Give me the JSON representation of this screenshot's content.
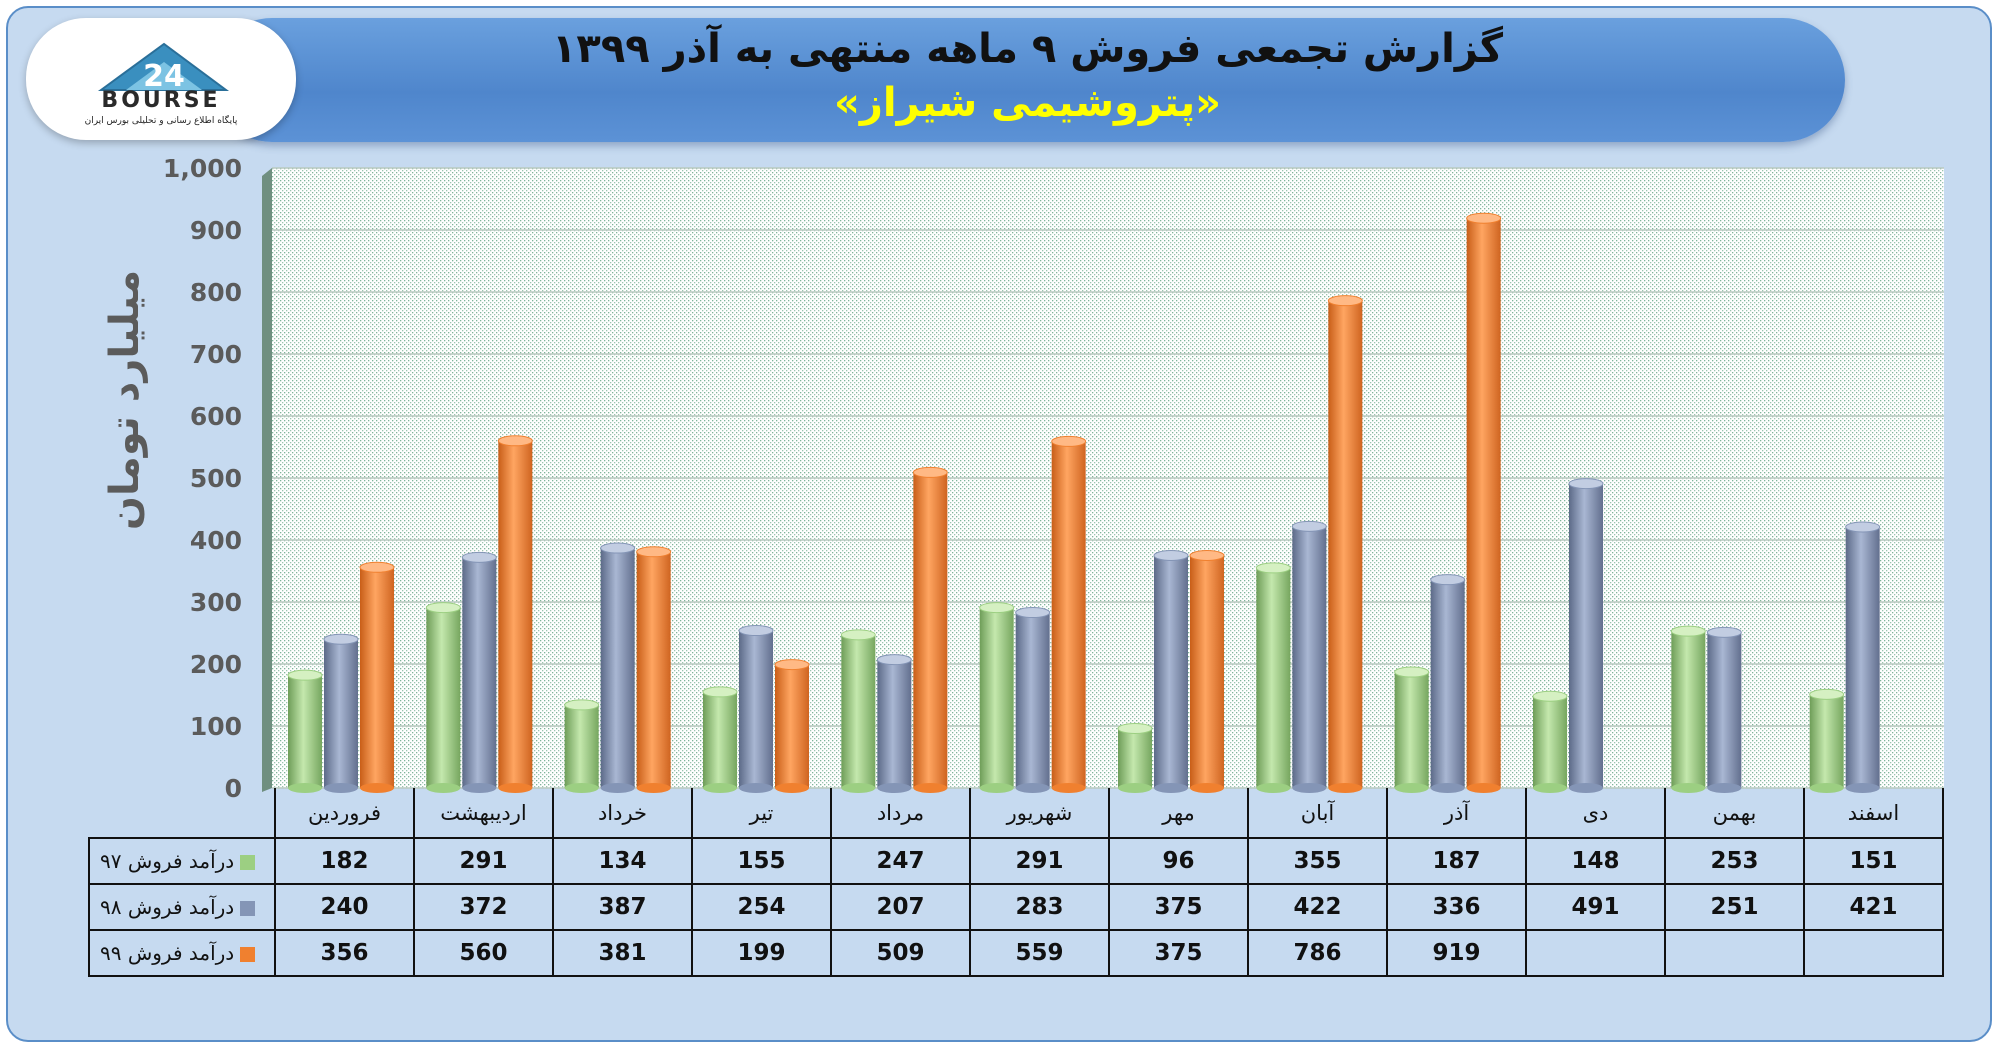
{
  "title": "گزارش تجمعی فروش ۹ ماهه منتهی به آذر ۱۳۹۹",
  "subtitle": "«پتروشیمی شیراز»",
  "logo": {
    "word": "BOURSE",
    "number": "24",
    "tagline": "پایگاه اطلاع رسانی و تحلیلی بورس ایران"
  },
  "colors": {
    "series_97": "#9ccf82",
    "series_98": "#8495b6",
    "series_99": "#f0802f",
    "frame_bg": "#c6daf0",
    "banner": "#5c92d6"
  },
  "chart_data": {
    "type": "bar",
    "title": "گزارش تجمعی فروش ۹ ماهه منتهی به آذر ۱۳۹۹",
    "ylabel": "میلیارد تومان",
    "xlabel": "",
    "ylim": [
      0,
      1000
    ],
    "yticks": [
      "0",
      "100",
      "200",
      "300",
      "400",
      "500",
      "600",
      "700",
      "800",
      "900",
      "1,000"
    ],
    "grid": true,
    "categories": [
      "فروردین",
      "اردیبهشت",
      "خرداد",
      "تیر",
      "مرداد",
      "شهریور",
      "مهر",
      "آبان",
      "آذر",
      "دی",
      "بهمن",
      "اسفند"
    ],
    "series": [
      {
        "name": "درآمد فروش ۹۷",
        "color": "#9ccf82",
        "values": [
          182,
          291,
          134,
          155,
          247,
          291,
          96,
          355,
          187,
          148,
          253,
          151
        ]
      },
      {
        "name": "درآمد فروش ۹۸",
        "color": "#8495b6",
        "values": [
          240,
          372,
          387,
          254,
          207,
          283,
          375,
          422,
          336,
          491,
          251,
          421
        ]
      },
      {
        "name": "درآمد فروش ۹۹",
        "color": "#f0802f",
        "values": [
          356,
          560,
          381,
          199,
          509,
          559,
          375,
          786,
          919,
          null,
          null,
          null
        ]
      }
    ]
  }
}
